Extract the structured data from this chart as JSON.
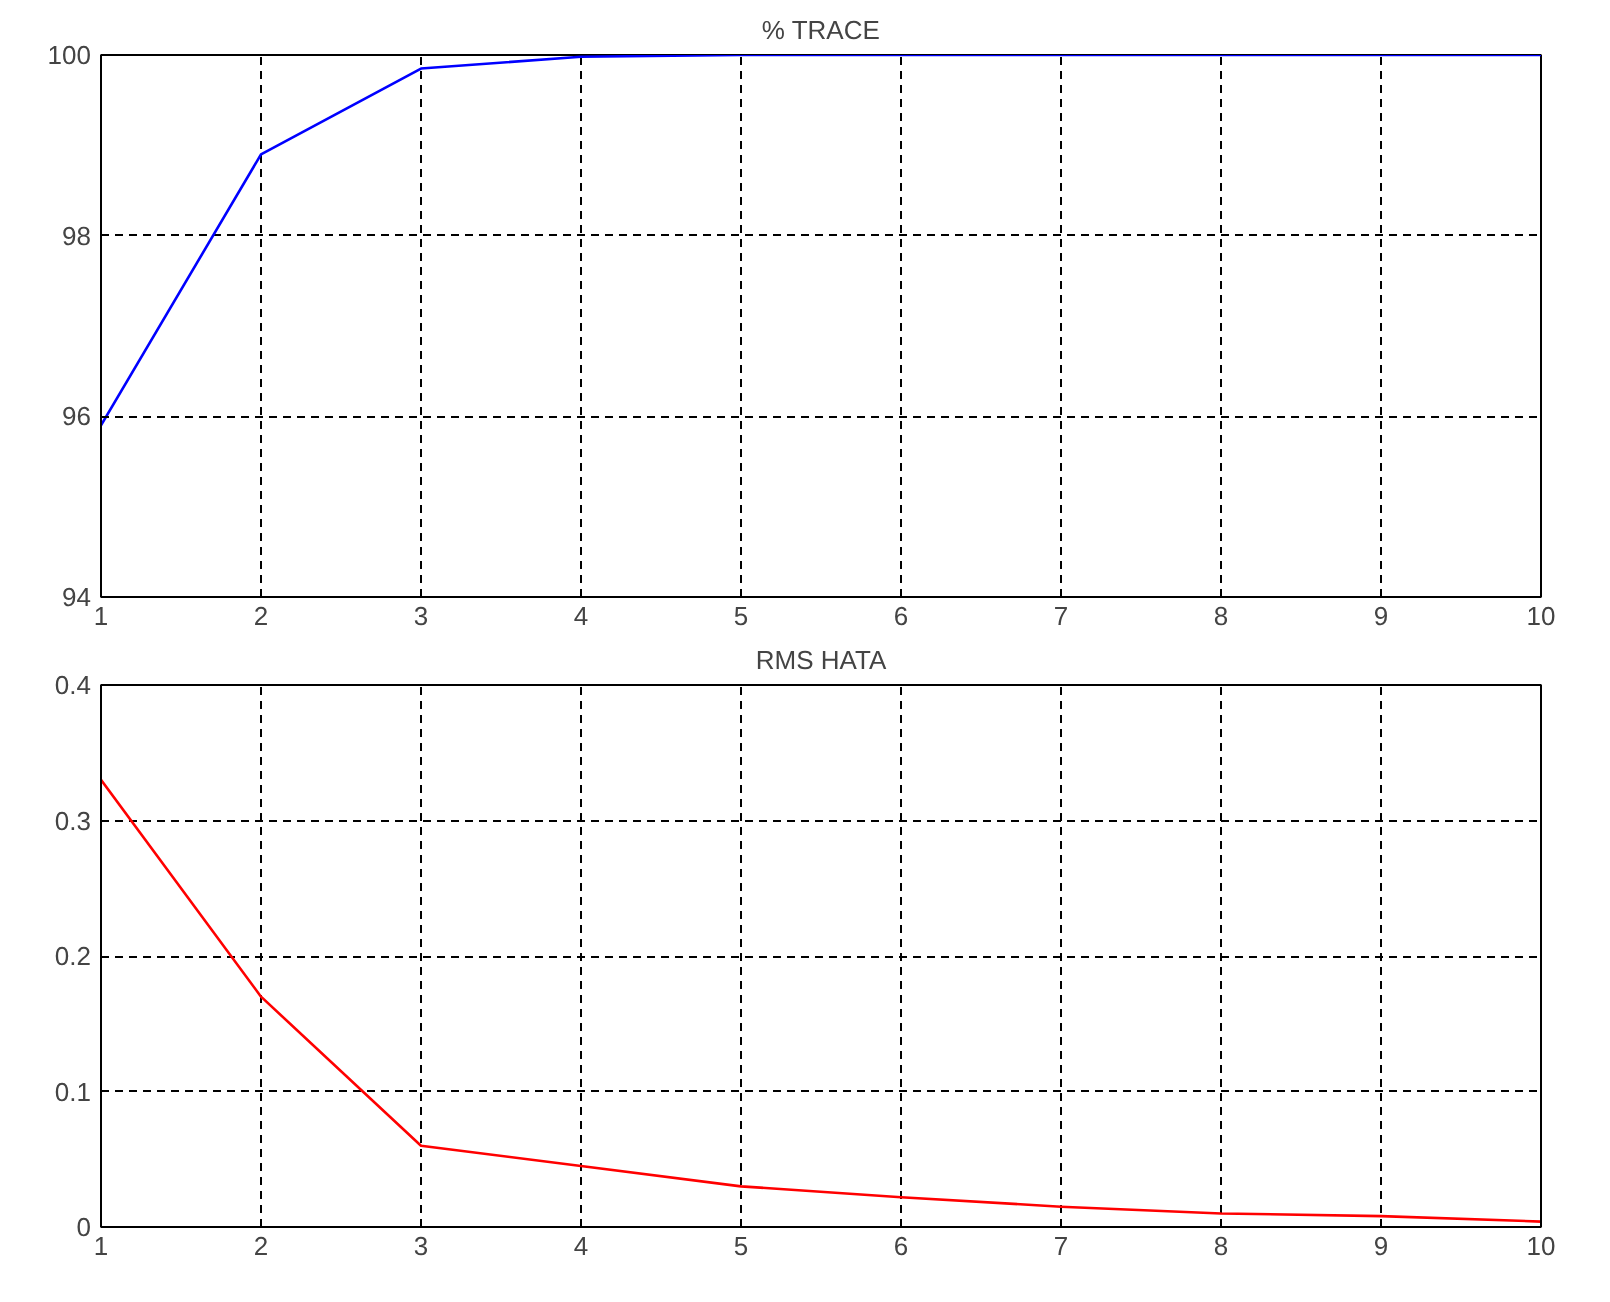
{
  "chart_data": [
    {
      "type": "line",
      "title": "% TRACE",
      "x": [
        1,
        2,
        3,
        4,
        5,
        6,
        7,
        8,
        9,
        10
      ],
      "series": [
        {
          "color": "#0000ff",
          "values": [
            95.9,
            98.9,
            99.85,
            99.98,
            100,
            100,
            100,
            100,
            100,
            100
          ]
        }
      ],
      "xlim": [
        1,
        10
      ],
      "xticks": [
        1,
        2,
        3,
        4,
        5,
        6,
        7,
        8,
        9,
        10
      ],
      "ylim": [
        94,
        100
      ],
      "yticks": [
        94,
        96,
        98,
        100
      ],
      "grid": true,
      "line_style": "solid"
    },
    {
      "type": "line",
      "title": "RMS HATA",
      "x": [
        1,
        2,
        3,
        4,
        5,
        6,
        7,
        8,
        9,
        10
      ],
      "series": [
        {
          "color": "#ff0000",
          "values": [
            0.33,
            0.17,
            0.06,
            0.045,
            0.03,
            0.022,
            0.015,
            0.01,
            0.008,
            0.004
          ]
        }
      ],
      "xlim": [
        1,
        10
      ],
      "xticks": [
        1,
        2,
        3,
        4,
        5,
        6,
        7,
        8,
        9,
        10
      ],
      "ylim": [
        0,
        0.4
      ],
      "yticks": [
        0,
        0.1,
        0.2,
        0.3,
        0.4
      ],
      "grid": true,
      "line_style": "solid"
    }
  ]
}
